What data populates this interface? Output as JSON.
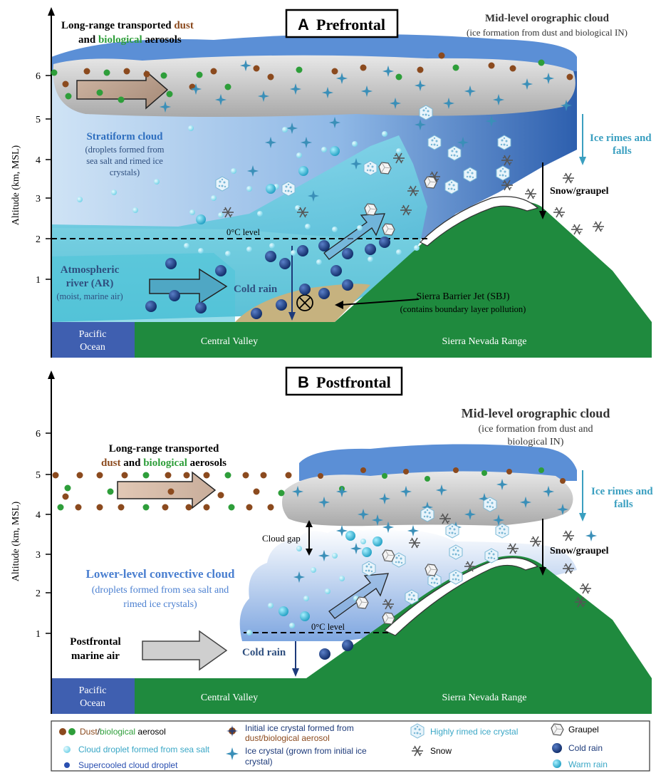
{
  "panel_a": {
    "badge_letter": "A",
    "badge_text": "Prefrontal",
    "yaxis_label": "Altitude (km, MSL)",
    "ticks": [
      "1",
      "2",
      "3",
      "4",
      "5",
      "6"
    ],
    "lr_line1": "Long-range transported ",
    "lr_dust": "dust",
    "lr_and": "and ",
    "lr_bio": "biological",
    "lr_aerosols": " aerosols",
    "orographic_title": "Mid-level orographic cloud",
    "orographic_sub": "(ice formation from dust and biological IN)",
    "stratiform_title": "Stratiform cloud",
    "stratiform_sub1": "(droplets formed from",
    "stratiform_sub2": "sea salt and rimed ice",
    "stratiform_sub3": "crystals)",
    "ice_rimes_1": "Ice rimes and",
    "ice_rimes_2": "falls",
    "snow_graupel": "Snow/graupel",
    "zero_c": "0°C level",
    "ar_1": "Atmospheric",
    "ar_2": "river (AR)",
    "ar_3": "(moist, marine air)",
    "cold_rain": "Cold rain",
    "sbj_1": "Sierra Barrier Jet (SBJ)",
    "sbj_2": "(contains boundary layer pollution)",
    "ocean_1": "Pacific",
    "ocean_2": "Ocean",
    "valley": "Central Valley",
    "range": "Sierra Nevada Range"
  },
  "panel_b": {
    "badge_letter": "B",
    "badge_text": "Postfrontal",
    "yaxis_label": "Altitude (km, MSL)",
    "ticks": [
      "1",
      "2",
      "3",
      "4",
      "5",
      "6"
    ],
    "lr_line1": "Long-range transported",
    "lr_dust": "dust",
    "lr_and": " and ",
    "lr_bio": "biological",
    "lr_aerosols": " aerosols",
    "orographic_title": "Mid-level orographic cloud",
    "orographic_sub1": "(ice formation from dust and",
    "orographic_sub2": "biological IN)",
    "ice_rimes_1": "Ice rimes and",
    "ice_rimes_2": "falls",
    "cloud_gap": "Cloud gap",
    "snow_graupel": "Snow/graupel",
    "convective_title": "Lower-level convective cloud",
    "convective_sub1": "(droplets formed from sea salt and",
    "convective_sub2": "rimed ice crystals)",
    "zero_c": "0°C level",
    "postfrontal_1": "Postfrontal",
    "postfrontal_2": "marine air",
    "cold_rain": "Cold rain",
    "ocean_1": "Pacific",
    "ocean_2": "Ocean",
    "valley": "Central Valley",
    "range": "Sierra Nevada Range"
  },
  "legend": {
    "dust_prefix": "Dust",
    "dust_slash": "/",
    "bio": "biological",
    "aerosol_suffix": " aerosol",
    "cloud_droplet": "Cloud droplet formed from sea salt",
    "supercooled": "Supercooled cloud droplet",
    "initial_ice_1": "Initial ice crystal formed from",
    "initial_ice_2": "dust/biological aerosol",
    "ice_crystal_1": "Ice crystal (grown from initial ice",
    "ice_crystal_2": "crystal)",
    "highly_rimed": "Highly rimed ice crystal",
    "snow": "Snow",
    "graupel": "Graupel",
    "cold_rain": "Cold rain",
    "warm_rain": "Warm rain"
  },
  "colors": {
    "dust": "#8b4a1e",
    "bio": "#2e9e3a",
    "mountain": "#1f8a3e",
    "ocean": "#3f5fb0",
    "cloud_top": "#5b8fd6",
    "cloud_grey": "#c8c8c8",
    "ice_text": "#3a9fc0",
    "title_blue": "#2f6fbf"
  }
}
